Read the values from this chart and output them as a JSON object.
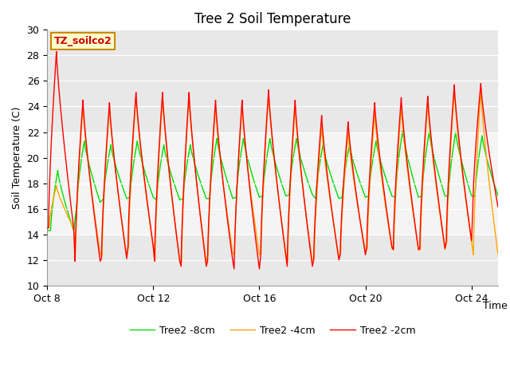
{
  "title": "Tree 2 Soil Temperature",
  "xlabel": "Time",
  "ylabel": "Soil Temperature (C)",
  "ylim": [
    10,
    30
  ],
  "xlim_days": [
    0,
    17
  ],
  "xtick_positions": [
    0,
    4,
    8,
    12,
    16
  ],
  "xtick_labels": [
    "Oct 8",
    "Oct 12",
    "Oct 16",
    "Oct 20",
    "Oct 24"
  ],
  "ytick_positions": [
    10,
    12,
    14,
    16,
    18,
    20,
    22,
    24,
    26,
    28,
    30
  ],
  "colors": {
    "2cm": "#ff0000",
    "4cm": "#ffa500",
    "8cm": "#00dd00"
  },
  "legend_labels": [
    "Tree2 -2cm",
    "Tree2 -4cm",
    "Tree2 -8cm"
  ],
  "annotation_text": "TZ_soilco2",
  "annotation_bg": "#ffffcc",
  "annotation_border": "#cc8800",
  "plot_bg": "#e8e8e8",
  "inner_bg": "#f4f4f4",
  "title_fontsize": 12,
  "axis_fontsize": 9,
  "legend_fontsize": 9,
  "peaks_2cm": [
    28.3,
    24.5,
    24.3,
    25.1,
    25.1,
    25.1,
    24.5,
    24.5,
    25.3,
    24.5,
    23.3,
    22.8,
    24.3,
    24.7,
    24.8,
    25.7,
    25.8
  ],
  "troughs_2cm": [
    14.5,
    11.9,
    12.1,
    13.1,
    11.9,
    11.5,
    11.9,
    11.3,
    12.3,
    11.5,
    12.0,
    12.4,
    13.0,
    12.8,
    12.9,
    13.5,
    16.1
  ],
  "peaks_4cm": [
    17.8,
    24.0,
    24.0,
    24.8,
    24.8,
    24.8,
    24.0,
    24.0,
    25.0,
    24.0,
    22.5,
    22.0,
    23.5,
    24.0,
    24.3,
    25.3,
    25.3
  ],
  "troughs_4cm": [
    14.5,
    12.5,
    12.3,
    13.0,
    11.9,
    11.8,
    12.5,
    12.4,
    12.5,
    11.9,
    12.2,
    12.7,
    12.9,
    12.8,
    12.8,
    13.4,
    12.4
  ],
  "peaks_8cm": [
    19.0,
    21.3,
    21.0,
    21.3,
    21.0,
    21.0,
    21.5,
    21.5,
    21.5,
    21.5,
    21.0,
    21.0,
    21.3,
    22.1,
    22.0,
    22.0,
    21.7
  ],
  "troughs_8cm": [
    14.3,
    16.5,
    16.8,
    16.9,
    16.7,
    16.8,
    16.8,
    16.9,
    17.0,
    17.1,
    16.8,
    16.9,
    17.0,
    16.9,
    17.0,
    17.0,
    17.0
  ],
  "peak_phase": 0.35,
  "trough_phase": 0.05
}
